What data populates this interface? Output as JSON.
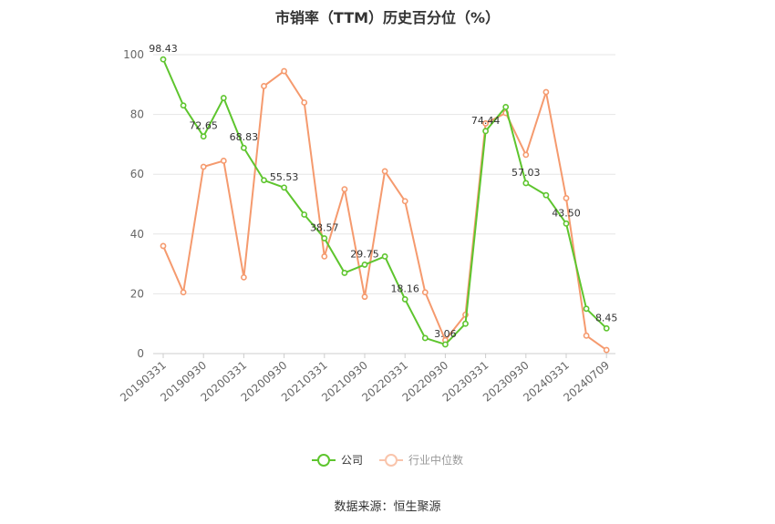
{
  "title": "市销率（TTM）历史百分位（%）",
  "source": "数据来源：恒生聚源",
  "colors": {
    "company": "#5ec52e",
    "industry": "#f59a6e",
    "grid": "#e6e6e6",
    "axis": "#999999"
  },
  "chart_data": {
    "type": "line",
    "ylim": [
      0,
      100
    ],
    "yticks": [
      0,
      20,
      40,
      60,
      80,
      100
    ],
    "x_tick_labels": [
      "20190331",
      "20190930",
      "20200331",
      "20200930",
      "20210331",
      "20210930",
      "20220331",
      "20220930",
      "20230331",
      "20230930",
      "20240331",
      "20240709"
    ],
    "legend": {
      "position": "bottom"
    },
    "series": [
      {
        "name": "公司",
        "values": [
          98.43,
          83,
          72.65,
          85.5,
          68.83,
          58,
          55.53,
          46.5,
          38.57,
          27,
          29.75,
          32.5,
          18.16,
          5.2,
          3.06,
          10,
          74.44,
          82.5,
          57.03,
          53,
          43.5,
          15,
          8.45
        ],
        "labels": [
          "98.43",
          "",
          "72.65",
          "",
          "68.83",
          "",
          "55.53",
          "",
          "38.57",
          "",
          "29.75",
          "",
          "18.16",
          "",
          "3.06",
          "",
          "74.44",
          "",
          "57.03",
          "",
          "43.50",
          "",
          "8.45"
        ]
      },
      {
        "name": "行业中位数",
        "values": [
          36,
          20.5,
          62.5,
          64.5,
          25.5,
          89.5,
          94.5,
          84,
          32.5,
          55,
          19,
          61,
          51,
          20.5,
          4.5,
          13,
          77,
          80.5,
          66.5,
          87.5,
          52,
          6,
          1.2
        ]
      }
    ]
  }
}
